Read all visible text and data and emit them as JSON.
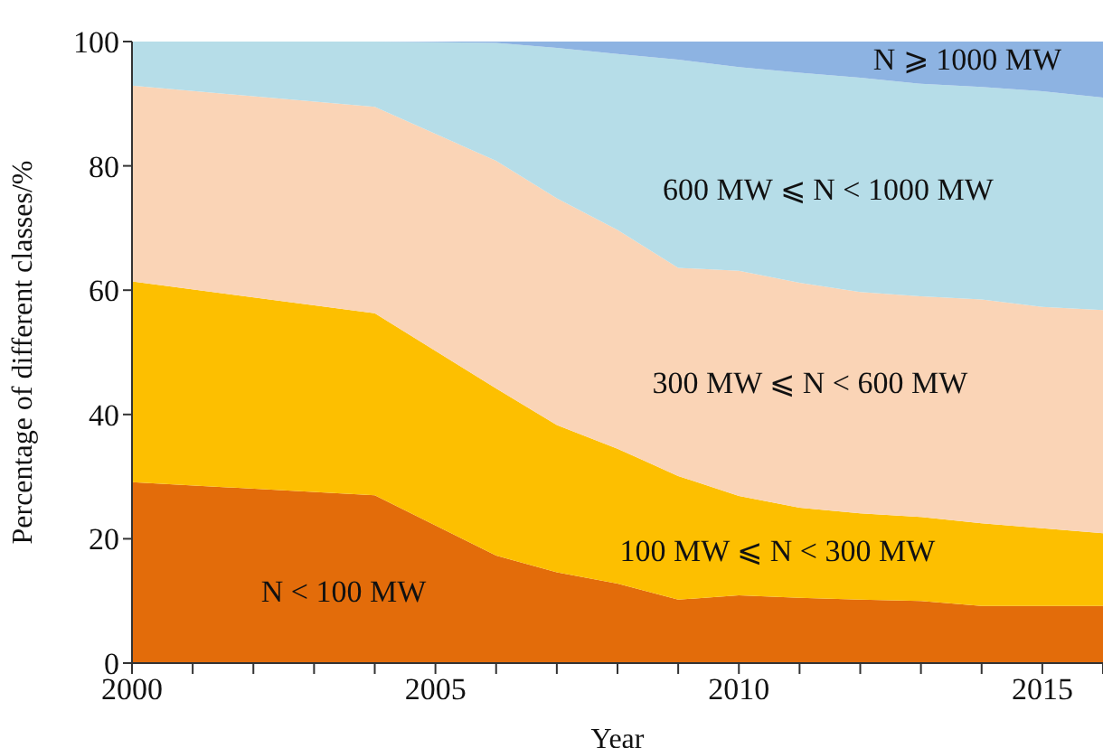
{
  "chart_data": {
    "type": "area",
    "stacked": true,
    "xlabel": "Year",
    "ylabel": "Percentage of different classes/%",
    "x": [
      2000,
      2004,
      2006,
      2007,
      2008,
      2009,
      2010,
      2011,
      2012,
      2013,
      2014,
      2015,
      2016
    ],
    "series": [
      {
        "name": "N < 100 MW",
        "color": "#e36c0a",
        "values": [
          29.1,
          27,
          17.3,
          14.6,
          12.8,
          10.2,
          10.9,
          10.5,
          10.2,
          10,
          9.2,
          9.2,
          9.2
        ]
      },
      {
        "name": "100 MW ⩽ N < 300 MW",
        "color": "#fdbf00",
        "values": [
          32.3,
          29.3,
          26.9,
          23.7,
          21.7,
          19.9,
          16,
          14.5,
          13.9,
          13.5,
          13.3,
          12.5,
          11.7
        ]
      },
      {
        "name": "300 MW ⩽ N < 600 MW",
        "color": "#fad4b6",
        "values": [
          31.5,
          33.2,
          36.6,
          36.5,
          35.2,
          33.5,
          36.2,
          36.2,
          35.6,
          35.5,
          36,
          35.6,
          35.9
        ]
      },
      {
        "name": "600 MW ⩽ N < 1000 MW",
        "color": "#b6dde8",
        "values": [
          7.1,
          10.5,
          19,
          24.2,
          28.3,
          33.5,
          32.8,
          33.8,
          34.5,
          34.2,
          34.2,
          34.7,
          34.2
        ]
      },
      {
        "name": "N ⩾ 1000 MW",
        "color": "#8db3e2",
        "values": [
          0,
          0,
          0.2,
          1,
          2,
          2.9,
          4.1,
          5,
          5.8,
          6.8,
          7.3,
          8,
          9
        ]
      }
    ],
    "xlim": [
      2000,
      2016
    ],
    "xticks": [
      2000,
      {
        "value": 2001,
        "label": null
      },
      {
        "value": 2002,
        "label": null
      },
      {
        "value": 2003,
        "label": null
      },
      {
        "value": 2004,
        "label": null
      },
      2005,
      {
        "value": 2006,
        "label": null
      },
      {
        "value": 2007,
        "label": null
      },
      {
        "value": 2008,
        "label": null
      },
      {
        "value": 2009,
        "label": null
      },
      2010,
      {
        "value": 2011,
        "label": null
      },
      {
        "value": 2012,
        "label": null
      },
      {
        "value": 2013,
        "label": null
      },
      {
        "value": 2014,
        "label": null
      },
      2015,
      {
        "value": 2016,
        "label": null
      }
    ],
    "ylim": [
      0,
      100
    ],
    "yticks": [
      0,
      20,
      40,
      60,
      80,
      100
    ]
  }
}
